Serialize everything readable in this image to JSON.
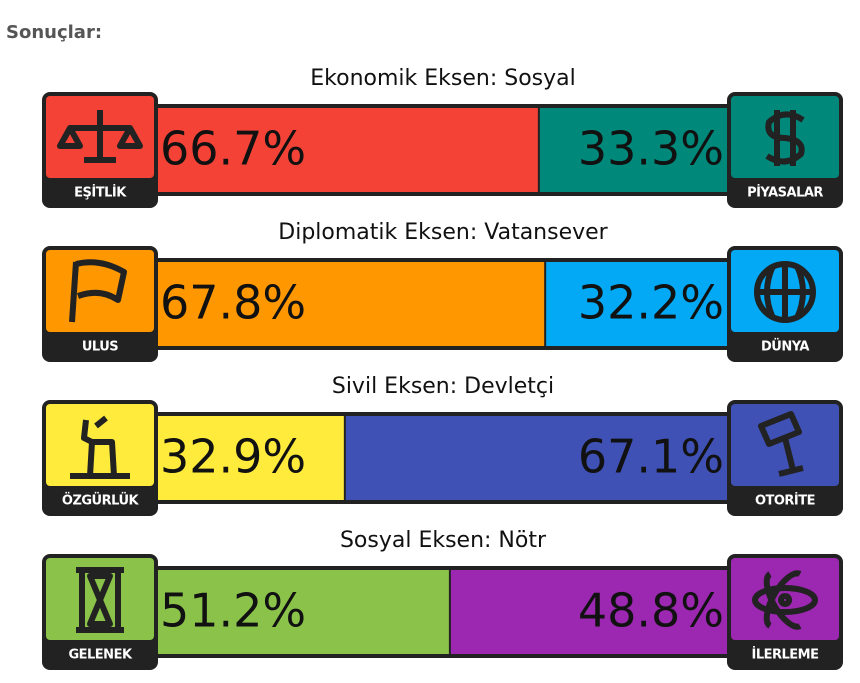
{
  "heading": "Sonuçlar:",
  "axes": [
    {
      "title": "Ekonomik Eksen: Sosyal",
      "left": {
        "name": "EŞİTLİK",
        "value": 66.7,
        "value_label": "66.7%",
        "color": "#f44336"
      },
      "right": {
        "name": "PİYASALAR",
        "value": 33.3,
        "value_label": "33.3%",
        "color": "#00897b"
      }
    },
    {
      "title": "Diplomatik Eksen: Vatansever",
      "left": {
        "name": "ULUS",
        "value": 67.8,
        "value_label": "67.8%",
        "color": "#ff9800"
      },
      "right": {
        "name": "DÜNYA",
        "value": 32.2,
        "value_label": "32.2%",
        "color": "#03a9f4"
      }
    },
    {
      "title": "Sivil Eksen: Devletçi",
      "left": {
        "name": "ÖZGÜRLÜK",
        "value": 32.9,
        "value_label": "32.9%",
        "color": "#ffeb3b"
      },
      "right": {
        "name": "OTORİTE",
        "value": 67.1,
        "value_label": "67.1%",
        "color": "#3f51b5"
      }
    },
    {
      "title": "Sosyal Eksen: Nötr",
      "left": {
        "name": "GELENEK",
        "value": 51.2,
        "value_label": "51.2%",
        "color": "#8bc34a"
      },
      "right": {
        "name": "İLERLEME",
        "value": 48.8,
        "value_label": "48.8%",
        "color": "#9c27b0"
      }
    }
  ]
}
